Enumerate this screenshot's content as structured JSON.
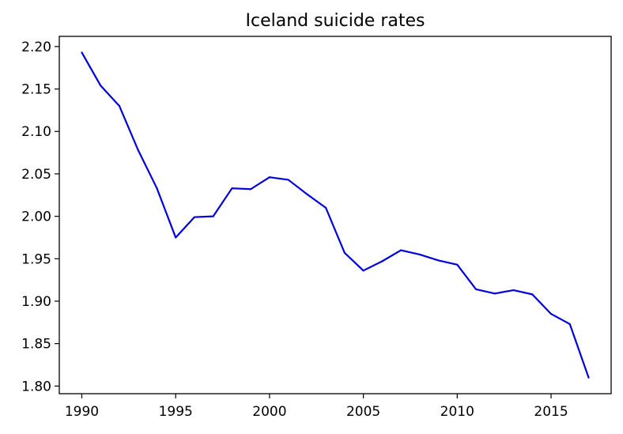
{
  "chart_data": {
    "type": "line",
    "title": "Iceland suicide rates",
    "xlabel": "",
    "ylabel": "",
    "xlim": [
      1988.8,
      2018.2
    ],
    "ylim": [
      1.791,
      2.212
    ],
    "x_ticks": [
      1990,
      1995,
      2000,
      2005,
      2010,
      2015
    ],
    "x_tick_labels": [
      "1990",
      "1995",
      "2000",
      "2005",
      "2010",
      "2015"
    ],
    "y_ticks": [
      1.8,
      1.85,
      1.9,
      1.95,
      2.0,
      2.05,
      2.1,
      2.15,
      2.2
    ],
    "y_tick_labels": [
      "1.80",
      "1.85",
      "1.90",
      "1.95",
      "2.00",
      "2.05",
      "2.10",
      "2.15",
      "2.20"
    ],
    "grid": false,
    "legend": false,
    "series": [
      {
        "color": "#0000dd",
        "x": [
          1990,
          1991,
          1992,
          1993,
          1994,
          1995,
          1996,
          1997,
          1998,
          1999,
          2000,
          2001,
          2002,
          2003,
          2004,
          2005,
          2006,
          2007,
          2008,
          2009,
          2010,
          2011,
          2012,
          2013,
          2014,
          2015,
          2016,
          2017
        ],
        "y": [
          2.193,
          2.154,
          2.13,
          2.078,
          2.033,
          1.975,
          1.999,
          2.0,
          2.033,
          2.032,
          2.046,
          2.043,
          2.026,
          2.01,
          1.957,
          1.936,
          1.947,
          1.96,
          1.955,
          1.948,
          1.943,
          1.914,
          1.909,
          1.913,
          1.908,
          1.885,
          1.873,
          1.81
        ]
      }
    ]
  }
}
